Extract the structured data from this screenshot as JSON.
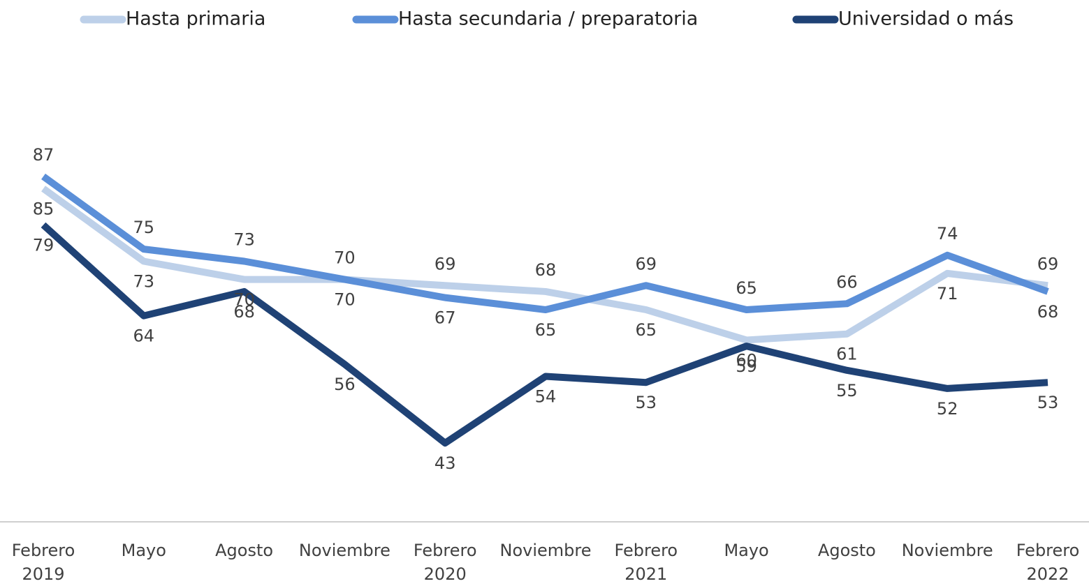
{
  "chart_data": {
    "type": "line",
    "categories": [
      "Febrero 2019",
      "Mayo",
      "Agosto",
      "Noviembre",
      "Febrero 2020",
      "Noviembre",
      "Febrero 2021",
      "Mayo",
      "Agosto",
      "Noviembre",
      "Febrero 2022"
    ],
    "series": [
      {
        "name": "Hasta primaria",
        "color": "#bdd0e9",
        "values": [
          85,
          73,
          70,
          70,
          69,
          68,
          65,
          60,
          61,
          71,
          69
        ]
      },
      {
        "name": "Hasta secundaria / preparatoria",
        "color": "#5b8fd8",
        "values": [
          87,
          75,
          73,
          70,
          67,
          65,
          69,
          65,
          66,
          74,
          68
        ]
      },
      {
        "name": "Universidad o más",
        "color": "#1f4275",
        "values": [
          79,
          64,
          68,
          56,
          43,
          54,
          53,
          59,
          55,
          52,
          53
        ]
      }
    ],
    "ylim": [
      30,
      100
    ],
    "legend": "top"
  }
}
